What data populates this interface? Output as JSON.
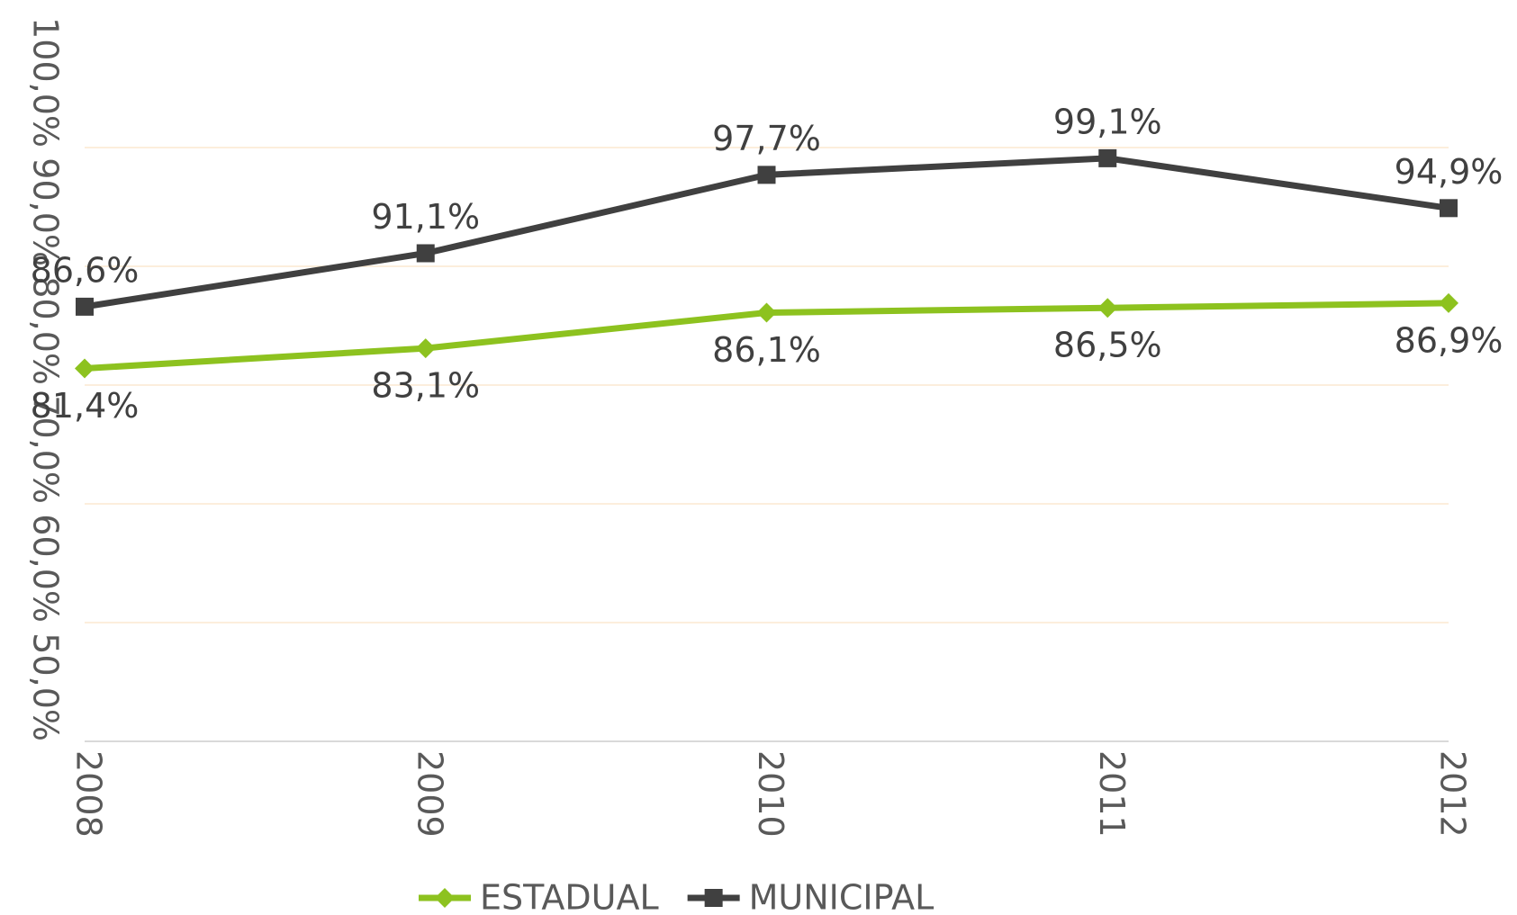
{
  "chart_data": {
    "type": "line",
    "categories": [
      "2008",
      "2009",
      "2010",
      "2011",
      "2012"
    ],
    "series": [
      {
        "name": "ESTADUAL",
        "color": "#8dc21f",
        "marker": "diamond",
        "values": [
          81.4,
          83.1,
          86.1,
          86.5,
          86.9
        ],
        "value_labels": [
          "81,4%",
          "83,1%",
          "86,1%",
          "86,5%",
          "86,9%"
        ]
      },
      {
        "name": "MUNICIPAL",
        "color": "#404040",
        "marker": "square",
        "values": [
          86.6,
          91.1,
          97.7,
          99.1,
          94.9
        ],
        "value_labels": [
          "86,6%",
          "91,1%",
          "97,7%",
          "99,1%",
          "94,9%"
        ]
      }
    ],
    "ylim": [
      50,
      100
    ],
    "yticks": [
      {
        "value": 50,
        "label": "50,0%"
      },
      {
        "value": 60,
        "label": "60,0%"
      },
      {
        "value": 70,
        "label": "70,0%"
      },
      {
        "value": 80,
        "label": "80,0%"
      },
      {
        "value": 90,
        "label": "90,0%"
      },
      {
        "value": 100,
        "label": "100,0%"
      }
    ],
    "grid": true,
    "grid_color": "#fbe9d0",
    "legend": "bottom"
  }
}
